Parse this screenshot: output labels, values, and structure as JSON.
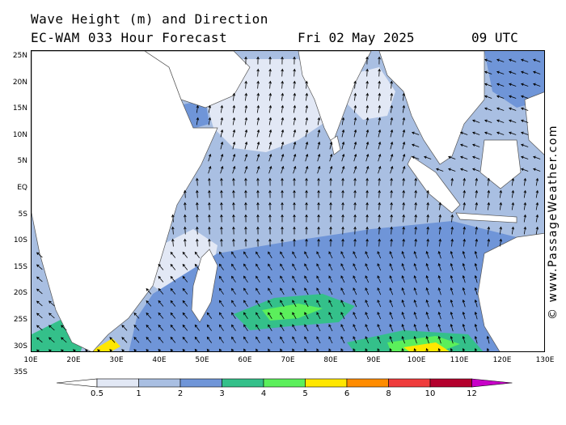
{
  "header": {
    "title_line1": "Wave Height (m) and Direction",
    "title_line2": "EC-WAM 033 Hour Forecast",
    "date": "Fri 02 May 2025",
    "time": "09 UTC"
  },
  "axes": {
    "lat_labels": [
      "25N",
      "20N",
      "15N",
      "10N",
      "5N",
      "EQ",
      "5S",
      "10S",
      "15S",
      "20S",
      "25S",
      "30S",
      "35S"
    ],
    "lon_labels": [
      "10E",
      "20E",
      "30E",
      "40E",
      "50E",
      "60E",
      "70E",
      "80E",
      "90E",
      "100E",
      "110E",
      "120E",
      "130E"
    ]
  },
  "colors": {
    "land": "#ffffff",
    "arrow": "#000000",
    "bins": [
      "#e2e8f5",
      "#a9bfe2",
      "#6f95d8",
      "#34c08a",
      "#5bef5b",
      "#ffe700",
      "#ff8c00",
      "#ef3c3c",
      "#b4002d",
      "#c800c8"
    ]
  },
  "legend": {
    "labels": [
      "0.5",
      "1",
      "2",
      "3",
      "4",
      "5",
      "6",
      "8",
      "10",
      "12"
    ]
  },
  "credit": "© www.PassageWeather.com"
}
